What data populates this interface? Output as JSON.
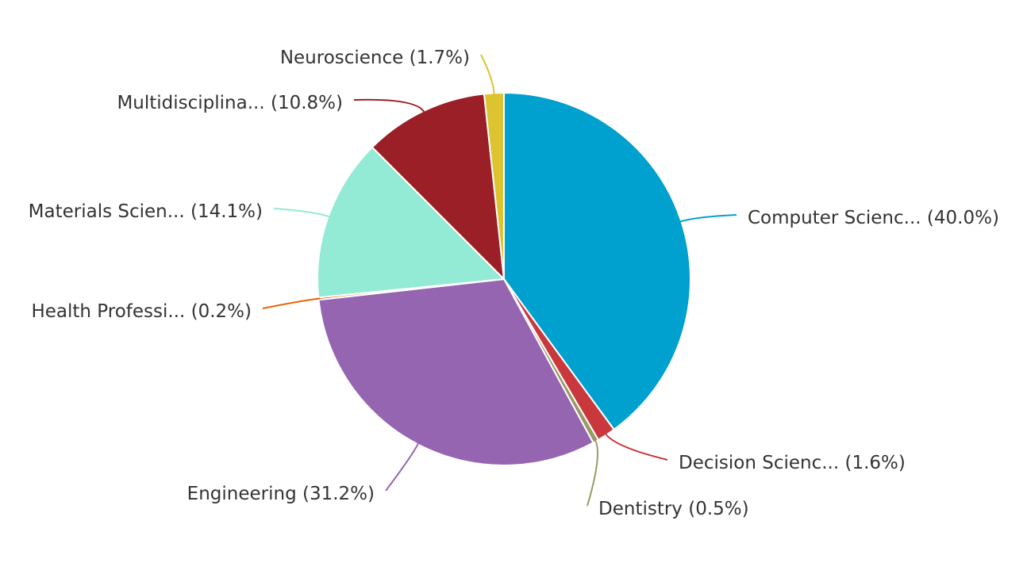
{
  "chart_data": {
    "type": "pie",
    "title": "",
    "slices": [
      {
        "name": "Computer Scienc...",
        "value": 40.0,
        "label": "Computer Scienc... (40.0%)",
        "color": "#00a0cf"
      },
      {
        "name": "Decision Scienc...",
        "value": 1.6,
        "label": "Decision Scienc... (1.6%)",
        "color": "#c8383d"
      },
      {
        "name": "Dentistry",
        "value": 0.5,
        "label": "Dentistry (0.5%)",
        "color": "#999966"
      },
      {
        "name": "Engineering",
        "value": 31.2,
        "label": "Engineering (31.2%)",
        "color": "#9565b1"
      },
      {
        "name": "Health Professi...",
        "value": 0.2,
        "label": "Health Professi... (0.2%)",
        "color": "#e8630a"
      },
      {
        "name": "Materials Scien...",
        "value": 14.1,
        "label": "Materials Scien... (14.1%)",
        "color": "#93ead5"
      },
      {
        "name": "Multidisciplina...",
        "value": 10.8,
        "label": "Multidisciplina... (10.8%)",
        "color": "#9b1f26"
      },
      {
        "name": "Neuroscience",
        "value": 1.7,
        "label": "Neuroscience (1.7%)",
        "color": "#dcc431"
      }
    ]
  }
}
